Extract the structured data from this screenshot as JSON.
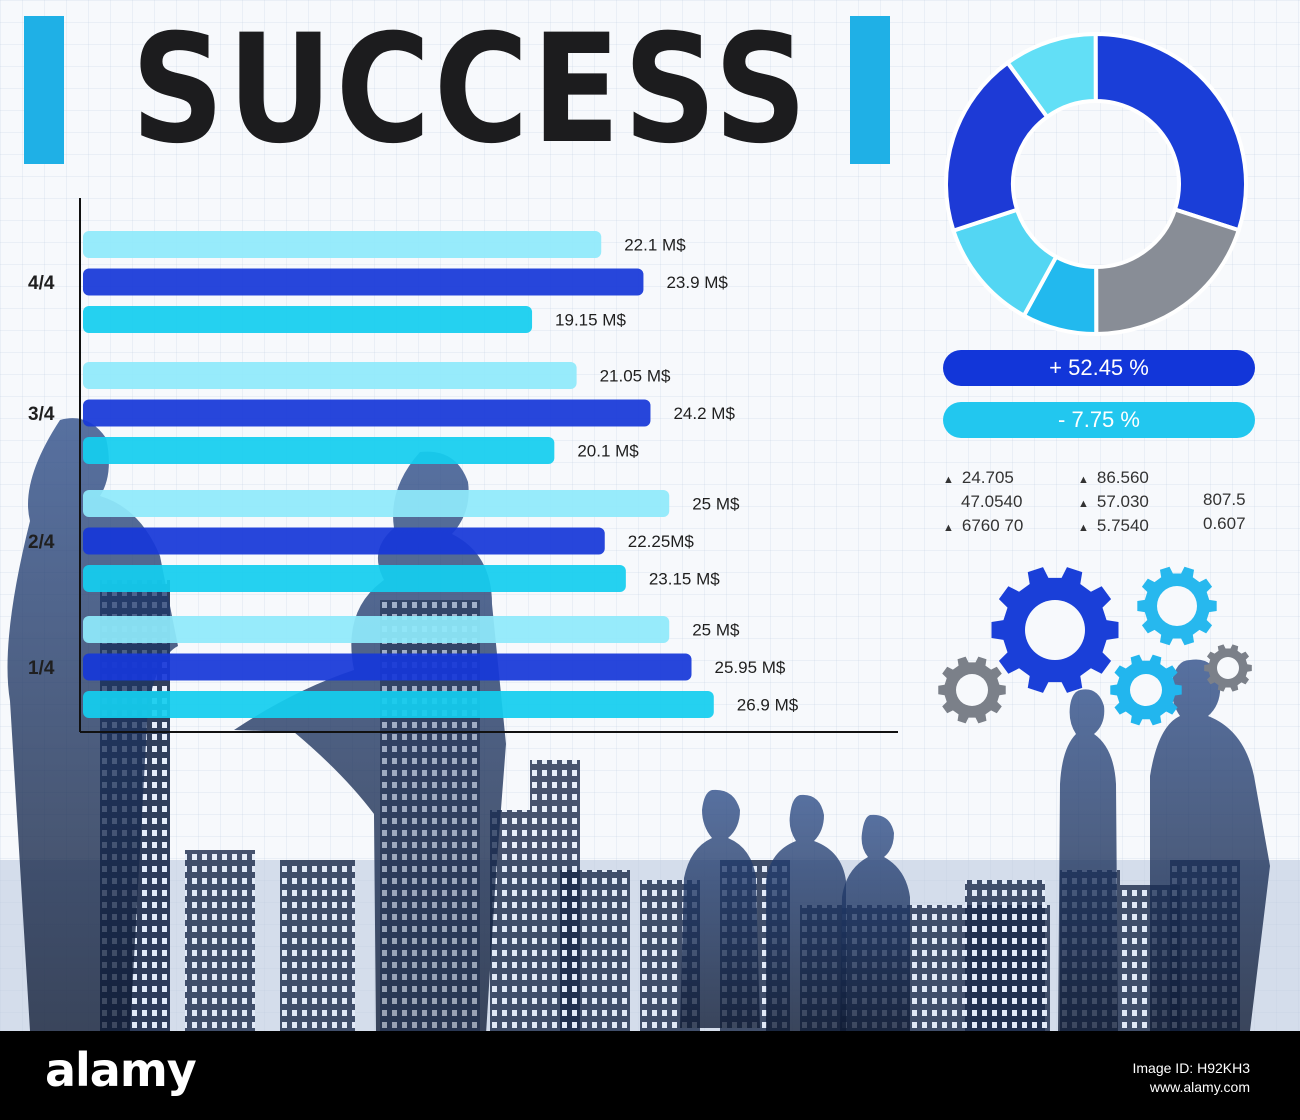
{
  "header": {
    "title": "SUCCESS"
  },
  "chart_data": [
    {
      "type": "bar",
      "orientation": "horizontal",
      "category_labels": [
        "4/4",
        "3/4",
        "2/4",
        "1/4"
      ],
      "groups": [
        {
          "label": "4/4",
          "values": [
            22.1,
            23.9,
            19.15
          ],
          "value_labels": [
            "22.1 M$",
            "23.9 M$",
            "19.15 M$"
          ]
        },
        {
          "label": "3/4",
          "values": [
            21.05,
            24.2,
            20.1
          ],
          "value_labels": [
            "21.05 M$",
            "24.2 M$",
            "20.1 M$"
          ]
        },
        {
          "label": "2/4",
          "values": [
            25,
            22.25,
            23.15
          ],
          "value_labels": [
            "25 M$",
            "22.25M$",
            "23.15 M$"
          ]
        },
        {
          "label": "1/4",
          "values": [
            25,
            25.95,
            26.9
          ],
          "value_labels": [
            "25 M$",
            "25.95 M$",
            "26.9 M$"
          ]
        }
      ],
      "colors": [
        "#8fe9fb",
        "#1738d8",
        "#14cdef"
      ],
      "xlim": [
        0,
        34.5
      ],
      "grid": false
    },
    {
      "type": "pie",
      "style": "donut",
      "values": [
        0.1,
        0.3,
        0.2,
        0.08,
        0.12,
        0.2
      ],
      "colors": [
        "#62dff6",
        "#1a3ed8",
        "#888d96",
        "#22b9ee",
        "#53d6f3",
        "#1d3ad6"
      ]
    }
  ],
  "stats": {
    "percent_up": "+ 52.45 %",
    "percent_down": "- 7.75 %",
    "tickers": [
      {
        "text": "24.705",
        "arrow": true
      },
      {
        "text": "86.560",
        "arrow": true
      },
      {
        "text": "47.0540",
        "arrow": false
      },
      {
        "text": "57.030",
        "arrow": true
      },
      {
        "text": "807.5",
        "arrow": false
      },
      {
        "text": "6760 70",
        "arrow": true
      },
      {
        "text": "5.7540",
        "arrow": true
      },
      {
        "text": "0.607",
        "arrow": false
      }
    ]
  },
  "gear_icons": [
    {
      "icon": "gear-icon",
      "color": "#1a3fd8"
    },
    {
      "icon": "gear-icon",
      "color": "#27b8ee"
    },
    {
      "icon": "gear-icon",
      "color": "#22b6ee"
    },
    {
      "icon": "gear-icon",
      "color": "#7b8089"
    },
    {
      "icon": "gear-icon",
      "color": "#7b8089"
    }
  ],
  "footer": {
    "brand": "alamy",
    "line1": "Image ID: H92KH3",
    "line2": "www.alamy.com"
  }
}
